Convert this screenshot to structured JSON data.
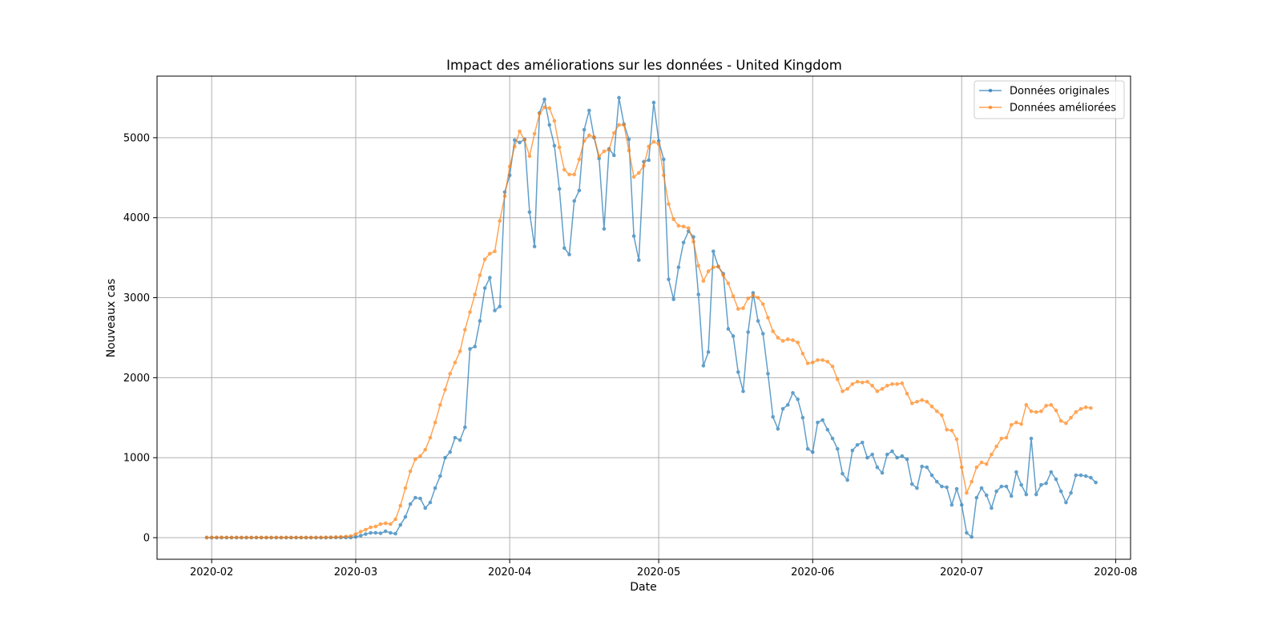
{
  "chart_data": {
    "type": "line",
    "title": "Impact des améliorations sur les données - United Kingdom",
    "xlabel": "Date",
    "ylabel": "Nouveaux cas",
    "x_start": "2020-01-31",
    "x_end": "2020-07-27",
    "xlim": [
      "2020-01-21",
      "2020-08-04"
    ],
    "ylim": [
      -270,
      5770
    ],
    "x_ticks": [
      {
        "date": "2020-02-01",
        "label": "2020-02"
      },
      {
        "date": "2020-03-01",
        "label": "2020-03"
      },
      {
        "date": "2020-04-01",
        "label": "2020-04"
      },
      {
        "date": "2020-05-01",
        "label": "2020-05"
      },
      {
        "date": "2020-06-01",
        "label": "2020-06"
      },
      {
        "date": "2020-07-01",
        "label": "2020-07"
      },
      {
        "date": "2020-08-01",
        "label": "2020-08"
      }
    ],
    "y_ticks": [
      0,
      1000,
      2000,
      3000,
      4000,
      5000
    ],
    "grid": true,
    "legend_position": "top-right",
    "series": [
      {
        "name": "Données originales",
        "color": "#1f77b4",
        "values": [
          2,
          0,
          0,
          0,
          0,
          0,
          0,
          0,
          0,
          0,
          0,
          0,
          0,
          0,
          0,
          0,
          0,
          0,
          0,
          0,
          0,
          0,
          0,
          0,
          0,
          2,
          2,
          2,
          2,
          2,
          10,
          25,
          45,
          60,
          60,
          55,
          80,
          60,
          50,
          160,
          260,
          420,
          500,
          490,
          370,
          440,
          620,
          770,
          1000,
          1070,
          1250,
          1220,
          1380,
          2360,
          2390,
          2710,
          3120,
          3250,
          2840,
          2890,
          4320,
          4530,
          4970,
          4940,
          4980,
          4070,
          3640,
          5310,
          5480,
          5160,
          4900,
          4360,
          3620,
          3540,
          4210,
          4340,
          5100,
          5340,
          5000,
          4740,
          3860,
          4860,
          4780,
          5500,
          5170,
          4980,
          3770,
          3470,
          4700,
          4720,
          5440,
          4960,
          4730,
          3230,
          2980,
          3380,
          3690,
          3830,
          3760,
          3040,
          2150,
          2320,
          3580,
          3390,
          3300,
          2610,
          2520,
          2070,
          1830,
          2570,
          3060,
          2710,
          2550,
          2050,
          1510,
          1360,
          1610,
          1660,
          1810,
          1730,
          1500,
          1110,
          1070,
          1440,
          1470,
          1350,
          1240,
          1110,
          800,
          720,
          1090,
          1160,
          1190,
          1000,
          1040,
          880,
          810,
          1040,
          1080,
          1000,
          1020,
          980,
          670,
          620,
          890,
          880,
          780,
          700,
          640,
          630,
          410,
          610,
          410,
          60,
          10,
          500,
          620,
          530,
          370,
          580,
          640,
          640,
          520,
          820,
          660,
          540,
          1240,
          540,
          660,
          680,
          820,
          730,
          580,
          440,
          560,
          780,
          780,
          770,
          750,
          690
        ]
      },
      {
        "name": "Données améliorées",
        "color": "#ff7f0e",
        "values": [
          0,
          4,
          4,
          4,
          3,
          3,
          3,
          3,
          3,
          3,
          3,
          3,
          3,
          3,
          3,
          3,
          3,
          3,
          3,
          3,
          3,
          3,
          3,
          4,
          4,
          5,
          7,
          10,
          14,
          20,
          45,
          75,
          100,
          130,
          140,
          170,
          180,
          170,
          230,
          400,
          620,
          830,
          980,
          1020,
          1100,
          1250,
          1440,
          1660,
          1850,
          2050,
          2190,
          2330,
          2600,
          2820,
          3040,
          3280,
          3480,
          3550,
          3580,
          3960,
          4270,
          4640,
          4890,
          5080,
          4970,
          4770,
          5050,
          5300,
          5380,
          5370,
          5210,
          4880,
          4600,
          4540,
          4540,
          4730,
          4960,
          5030,
          5010,
          4770,
          4830,
          4850,
          5060,
          5160,
          5160,
          4840,
          4510,
          4560,
          4650,
          4890,
          4950,
          4920,
          4530,
          4170,
          3980,
          3900,
          3890,
          3870,
          3700,
          3400,
          3210,
          3330,
          3380,
          3390,
          3280,
          3180,
          3020,
          2860,
          2870,
          2990,
          3030,
          3000,
          2920,
          2750,
          2580,
          2500,
          2460,
          2480,
          2470,
          2440,
          2300,
          2180,
          2190,
          2220,
          2220,
          2200,
          2140,
          1980,
          1830,
          1860,
          1920,
          1950,
          1940,
          1950,
          1900,
          1830,
          1860,
          1900,
          1920,
          1920,
          1930,
          1800,
          1680,
          1700,
          1720,
          1700,
          1640,
          1580,
          1530,
          1350,
          1340,
          1230,
          880,
          560,
          700,
          880,
          940,
          920,
          1040,
          1140,
          1240,
          1250,
          1410,
          1440,
          1420,
          1660,
          1580,
          1570,
          1580,
          1650,
          1660,
          1590,
          1460,
          1430,
          1500,
          1570,
          1610,
          1630,
          1620
        ]
      }
    ]
  }
}
